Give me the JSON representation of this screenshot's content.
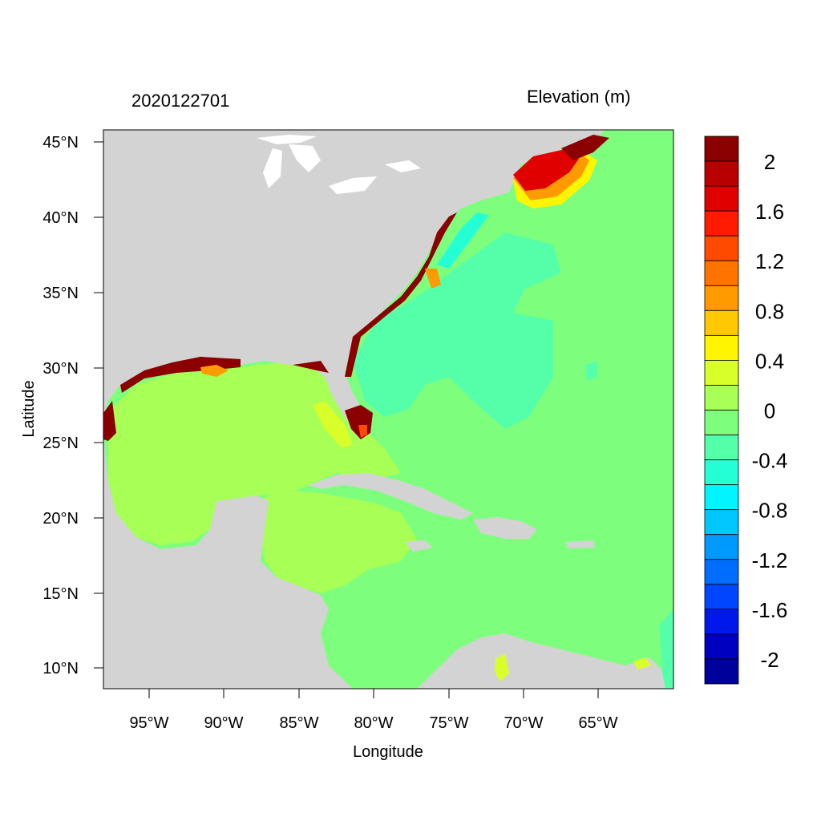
{
  "header": {
    "left_title": "2020122701",
    "right_title": "Elevation (m)"
  },
  "axes": {
    "xlabel": "Longitude",
    "ylabel": "Latitude",
    "x_ticks": [
      "95°W",
      "90°W",
      "85°W",
      "80°W",
      "75°W",
      "70°W",
      "65°W"
    ],
    "y_ticks": [
      "45°N",
      "40°N",
      "35°N",
      "30°N",
      "25°N",
      "20°N",
      "15°N",
      "10°N"
    ]
  },
  "map_data": {
    "type": "filled-contour-map",
    "variable": "Elevation (m)",
    "land_color": "#d3d3d3"
  },
  "colorbar": {
    "labels": [
      "2",
      "1.6",
      "1.2",
      "0.8",
      "0.4",
      "0",
      "-0.4",
      "-0.8",
      "-1.2",
      "-1.6",
      "-2"
    ],
    "colors": [
      "#8b0000",
      "#b80000",
      "#e00000",
      "#ff1a00",
      "#ff4a00",
      "#ff7400",
      "#ff9a00",
      "#ffc800",
      "#fff500",
      "#d9ff2b",
      "#a8ff55",
      "#7dff7d",
      "#55ffaa",
      "#25ffd5",
      "#00f5ff",
      "#00c8ff",
      "#009aff",
      "#006dff",
      "#0045ff",
      "#0018ea",
      "#0000c0",
      "#00009a"
    ]
  }
}
